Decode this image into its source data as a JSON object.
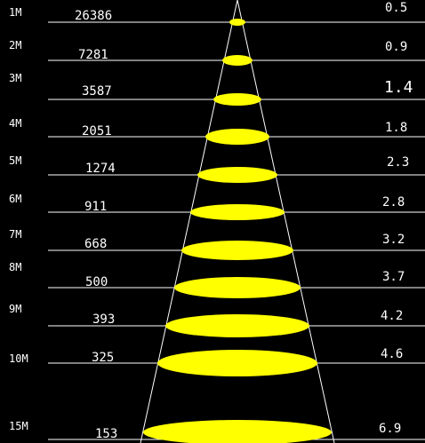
{
  "colors": {
    "background": "#000000",
    "lines": "#ffffff",
    "text": "#ffffff",
    "spot": "#ffff00"
  },
  "rows": [
    {
      "distance": "1M",
      "lux": "26386",
      "diameter": "0.5"
    },
    {
      "distance": "2M",
      "lux": "7281",
      "diameter": "0.9"
    },
    {
      "distance": "3M",
      "lux": "3587",
      "diameter": "1.4"
    },
    {
      "distance": "4M",
      "lux": "2051",
      "diameter": "1.8"
    },
    {
      "distance": "5M",
      "lux": "1274",
      "diameter": "2.3"
    },
    {
      "distance": "6M",
      "lux": "911",
      "diameter": "2.8"
    },
    {
      "distance": "7M",
      "lux": "668",
      "diameter": "3.2"
    },
    {
      "distance": "8M",
      "lux": "500",
      "diameter": "3.7"
    },
    {
      "distance": "9M",
      "lux": "393",
      "diameter": "4.2"
    },
    {
      "distance": "10M",
      "lux": "325",
      "diameter": "4.6"
    },
    {
      "distance": "15M",
      "lux": "153",
      "diameter": "6.9"
    }
  ]
}
